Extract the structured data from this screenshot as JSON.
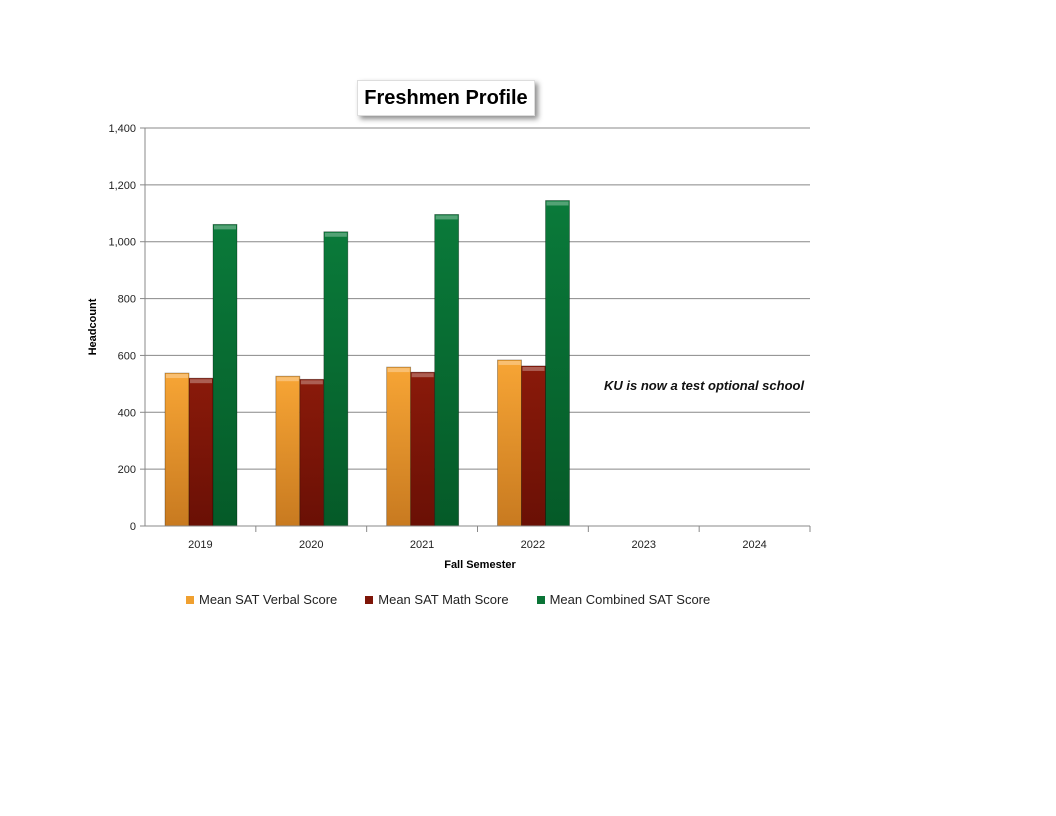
{
  "chart_data": {
    "type": "bar",
    "title": "Freshmen Profile",
    "xlabel": "Fall Semester",
    "ylabel": "Headcount",
    "ylim": [
      0,
      1400
    ],
    "yticks": [
      0,
      200,
      400,
      600,
      800,
      1000,
      1200,
      1400
    ],
    "ytick_labels": [
      "0",
      "200",
      "400",
      "600",
      "800",
      "1,000",
      "1,200",
      "1,400"
    ],
    "categories": [
      "2019",
      "2020",
      "2021",
      "2022",
      "2023",
      "2024"
    ],
    "series": [
      {
        "name": "Mean SAT Verbal Score",
        "color": "#f0a030",
        "values": [
          538,
          527,
          559,
          584,
          null,
          null
        ]
      },
      {
        "name": "Mean SAT Math Score",
        "color": "#7e1508",
        "values": [
          520,
          516,
          541,
          563,
          null,
          null
        ]
      },
      {
        "name": "Mean Combined SAT Score",
        "color": "#0a7436",
        "values": [
          1061,
          1035,
          1096,
          1145,
          null,
          null
        ]
      }
    ],
    "grid": true,
    "legend_position": "bottom",
    "annotation": "KU is now a test optional school"
  }
}
